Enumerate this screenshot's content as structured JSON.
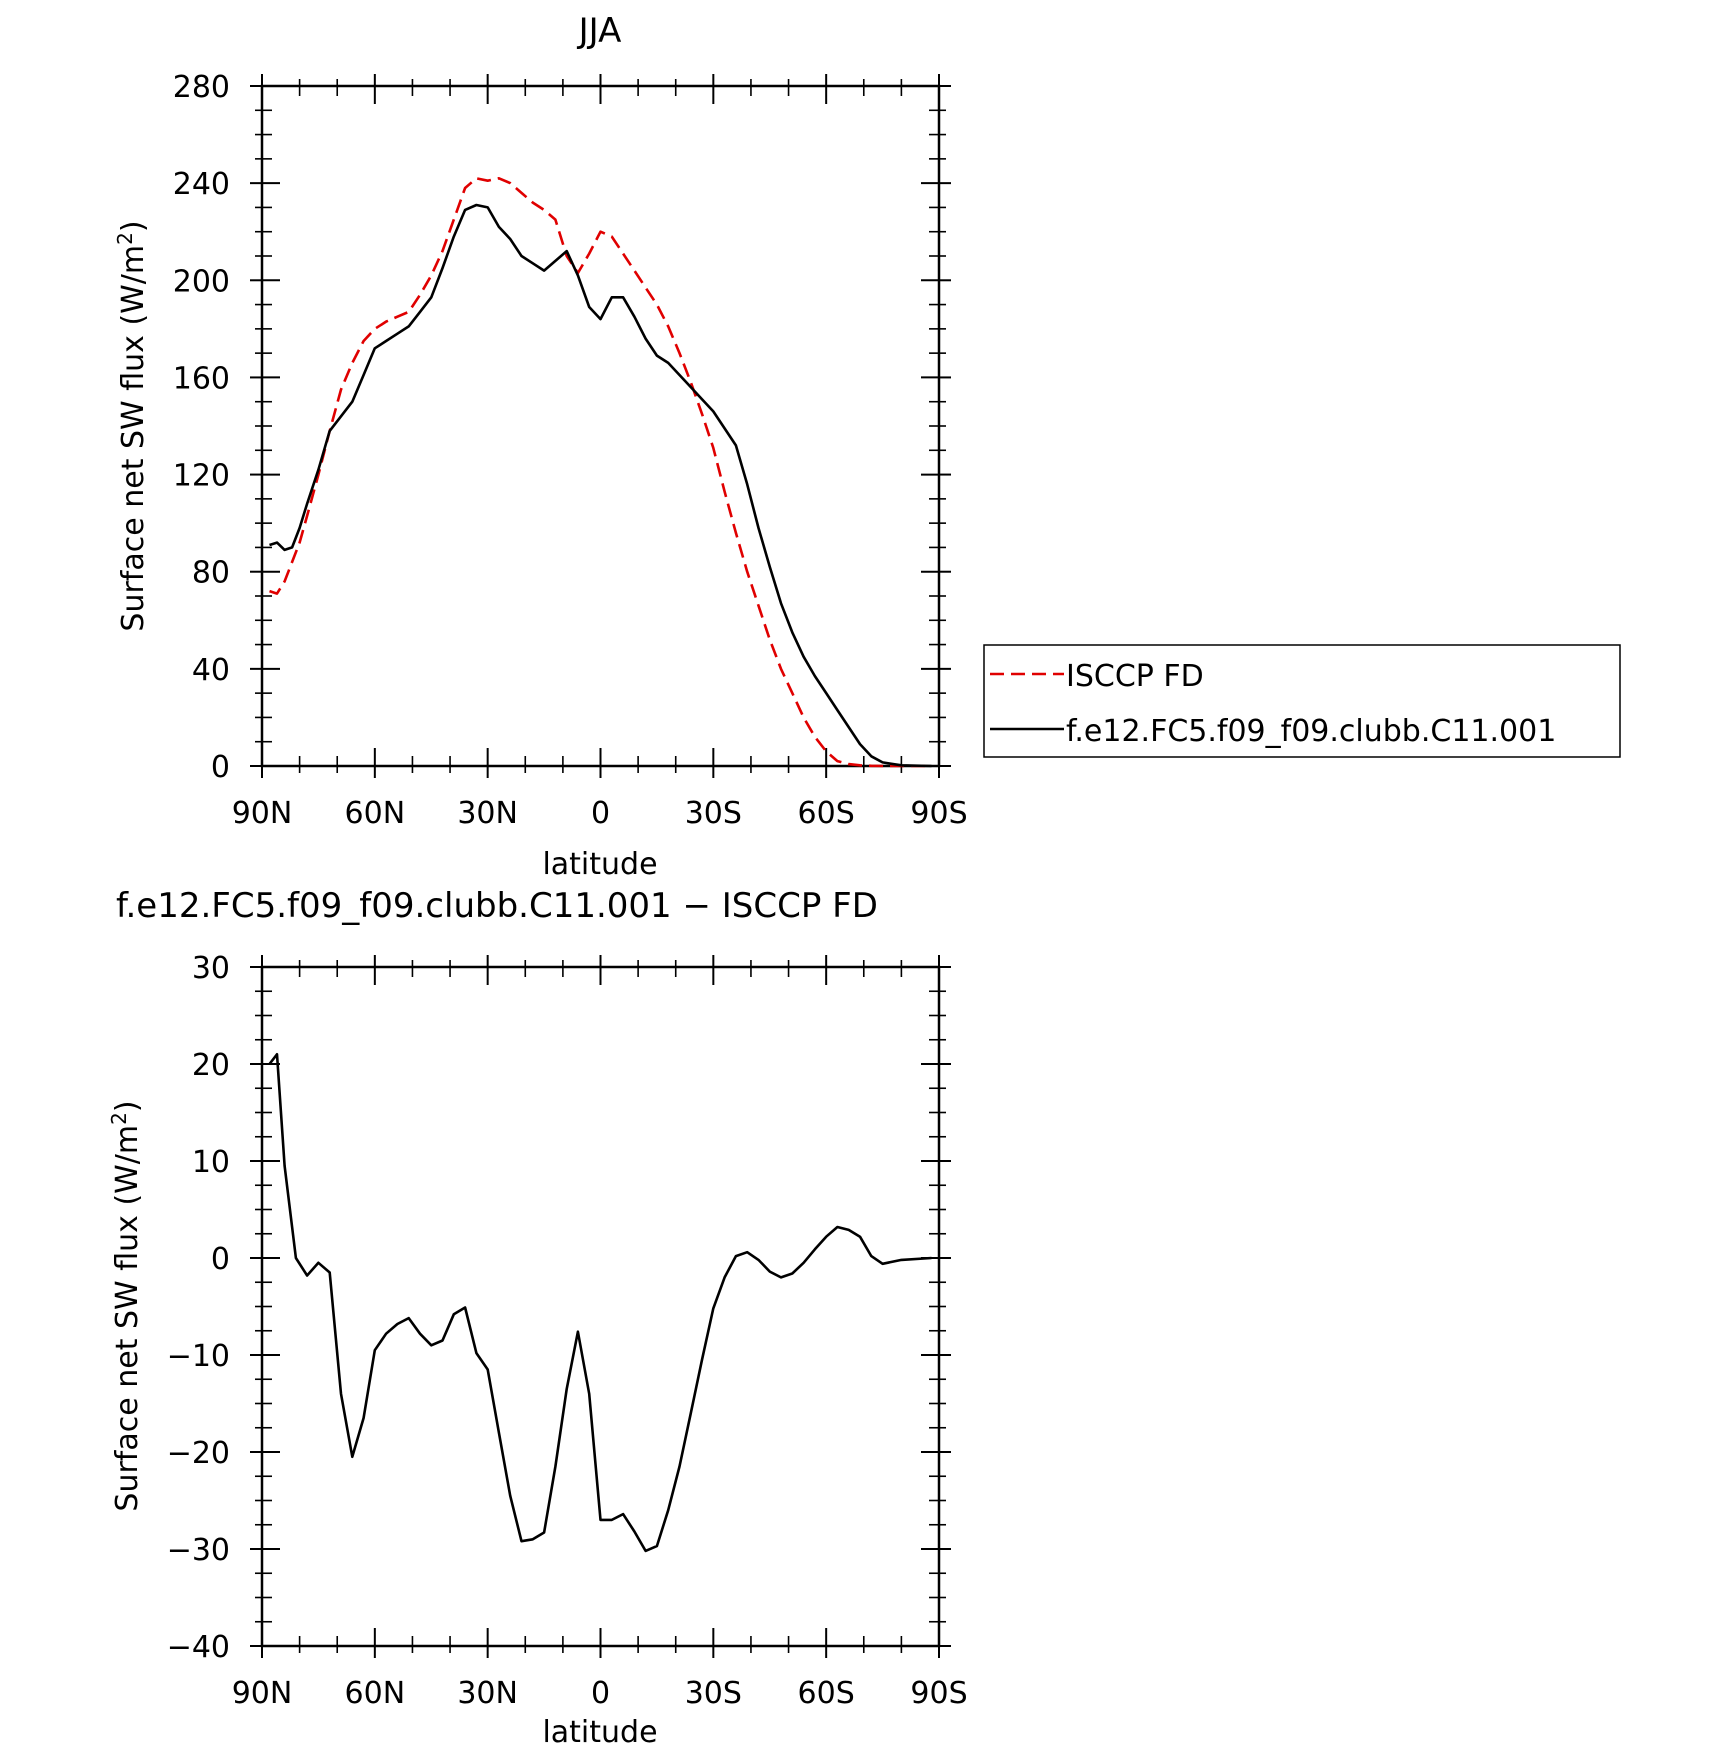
{
  "chart_data": [
    {
      "type": "line",
      "title": "JJA",
      "xlabel": "latitude",
      "ylabel": "Surface net SW flux (W/m²)",
      "ylabel_parts": [
        "Surface net SW flux (W/m",
        "2",
        ")"
      ],
      "xlim": [
        90,
        -90
      ],
      "ylim": [
        0,
        280
      ],
      "xticks": [
        90,
        60,
        30,
        0,
        -30,
        -60,
        -90
      ],
      "xtick_labels": [
        "90N",
        "60N",
        "30N",
        "0",
        "30S",
        "60S",
        "90S"
      ],
      "yticks": [
        0,
        40,
        80,
        120,
        160,
        200,
        240,
        280
      ],
      "ytick_labels": [
        "0",
        "40",
        "80",
        "120",
        "160",
        "200",
        "240",
        "280"
      ],
      "grid": false,
      "legend_position": "right",
      "series": [
        {
          "name": "ISCCP FD",
          "color": "#e00000",
          "dash": true,
          "x": [
            88,
            86,
            84,
            82,
            80,
            78,
            75,
            72,
            69,
            66,
            63,
            60,
            57,
            54,
            51,
            48,
            45,
            42,
            39,
            36,
            33,
            30,
            27,
            24,
            21,
            18,
            15,
            12,
            9,
            6,
            3,
            0,
            -3,
            -6,
            -9,
            -12,
            -15,
            -18,
            -21,
            -24,
            -27,
            -30,
            -33,
            -36,
            -39,
            -42,
            -45,
            -48,
            -51,
            -54,
            -57,
            -60,
            -63,
            -66,
            -69,
            -72,
            -75,
            -80,
            -88
          ],
          "y": [
            72,
            71,
            76,
            84,
            92,
            103,
            120,
            138,
            155,
            166,
            175,
            180,
            183,
            185,
            187,
            194,
            202,
            212,
            225,
            238,
            242,
            241,
            242,
            240,
            236,
            232,
            229,
            225,
            210,
            203,
            211,
            220,
            218,
            211,
            204,
            197,
            190,
            181,
            170,
            158,
            145,
            131,
            113,
            96,
            80,
            66,
            52,
            40,
            30,
            20,
            12,
            6,
            2,
            0.8,
            0.3,
            0.1,
            0,
            0,
            0
          ]
        },
        {
          "name": "f.e12.FC5.f09_f09.clubb.C11.001",
          "color": "#000000",
          "dash": false,
          "x": [
            88,
            86,
            84,
            82,
            80,
            78,
            75,
            72,
            69,
            66,
            63,
            60,
            57,
            54,
            51,
            48,
            45,
            42,
            39,
            36,
            33,
            30,
            27,
            24,
            21,
            18,
            15,
            12,
            9,
            6,
            3,
            0,
            -3,
            -6,
            -9,
            -12,
            -15,
            -18,
            -21,
            -24,
            -27,
            -30,
            -33,
            -36,
            -39,
            -42,
            -45,
            -48,
            -51,
            -54,
            -57,
            -60,
            -63,
            -66,
            -69,
            -72,
            -75,
            -80,
            -88
          ],
          "y": [
            91,
            92,
            89,
            90,
            98,
            108,
            122,
            138,
            144,
            150,
            161,
            172,
            175,
            178,
            181,
            187,
            193,
            205,
            218,
            229,
            231,
            230,
            222,
            217,
            210,
            207,
            204,
            208,
            212,
            202,
            189,
            184,
            193,
            193,
            185,
            176,
            169,
            166,
            161,
            156,
            151,
            146,
            139,
            132,
            116,
            98,
            82,
            67,
            55,
            45,
            37,
            30,
            23,
            16,
            9,
            4,
            1.5,
            0.3,
            0
          ]
        }
      ]
    },
    {
      "type": "line",
      "title": "f.e12.FC5.f09_f09.clubb.C11.001 − ISCCP FD",
      "xlabel": "latitude",
      "ylabel": "Surface net SW flux (W/m²)",
      "ylabel_parts": [
        "Surface net SW flux (W/m",
        "2",
        ")"
      ],
      "xlim": [
        90,
        -90
      ],
      "ylim": [
        -40,
        30
      ],
      "xticks": [
        90,
        60,
        30,
        0,
        -30,
        -60,
        -90
      ],
      "xtick_labels": [
        "90N",
        "60N",
        "30N",
        "0",
        "30S",
        "60S",
        "90S"
      ],
      "yticks": [
        -40,
        -30,
        -20,
        -10,
        0,
        10,
        20,
        30
      ],
      "ytick_labels": [
        "−40",
        "−30",
        "−20",
        "−10",
        "0",
        "10",
        "20",
        "30"
      ],
      "grid": false,
      "series": [
        {
          "color": "#000000",
          "dash": false,
          "x": [
            88,
            86,
            84,
            81,
            78,
            75,
            72,
            69,
            66,
            63,
            60,
            57,
            54,
            51,
            48,
            45,
            42,
            39,
            36,
            33,
            30,
            27,
            24,
            21,
            18,
            15,
            12,
            9,
            6,
            3,
            0,
            -3,
            -6,
            -9,
            -12,
            -15,
            -18,
            -21,
            -24,
            -27,
            -30,
            -33,
            -36,
            -39,
            -42,
            -45,
            -48,
            -51,
            -54,
            -57,
            -60,
            -63,
            -66,
            -69,
            -72,
            -75,
            -80,
            -88
          ],
          "y": [
            20,
            21,
            9.5,
            0,
            -1.8,
            -0.5,
            -1.5,
            -14,
            -20.5,
            -16.5,
            -9.5,
            -7.8,
            -6.8,
            -6.2,
            -7.8,
            -9,
            -8.5,
            -5.8,
            -5.1,
            -9.8,
            -11.5,
            -18,
            -24.5,
            -29.2,
            -29,
            -28.3,
            -21.5,
            -13.5,
            -7.6,
            -14,
            -27,
            -27,
            -26.4,
            -28.2,
            -30.2,
            -29.7,
            -26,
            -21.5,
            -16,
            -10.5,
            -5.2,
            -2,
            0.2,
            0.6,
            -0.2,
            -1.4,
            -2,
            -1.6,
            -0.5,
            0.9,
            2.2,
            3.2,
            2.9,
            2.2,
            0.2,
            -0.6,
            -0.2,
            0
          ]
        }
      ]
    }
  ]
}
